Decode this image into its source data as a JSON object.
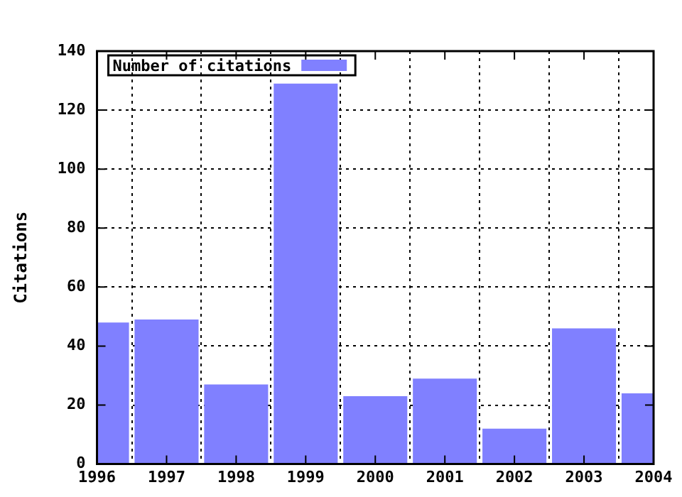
{
  "chart_data": {
    "type": "bar",
    "ylabel": "Citations",
    "x": [
      1996,
      1997,
      1998,
      1999,
      2000,
      2001,
      2002,
      2003,
      2004
    ],
    "series": [
      {
        "name": "Number of citations",
        "color": "#8080ff",
        "values": [
          48,
          49,
          27,
          129,
          23,
          29,
          12,
          46,
          24
        ]
      }
    ],
    "xlim": [
      1996,
      2004
    ],
    "xticks": [
      1996,
      1997,
      1998,
      1999,
      2000,
      2001,
      2002,
      2003,
      2004
    ],
    "ylim": [
      0,
      140
    ],
    "yticks": [
      0,
      20,
      40,
      60,
      80,
      100,
      120,
      140
    ],
    "grid": true,
    "legend": "top left"
  }
}
